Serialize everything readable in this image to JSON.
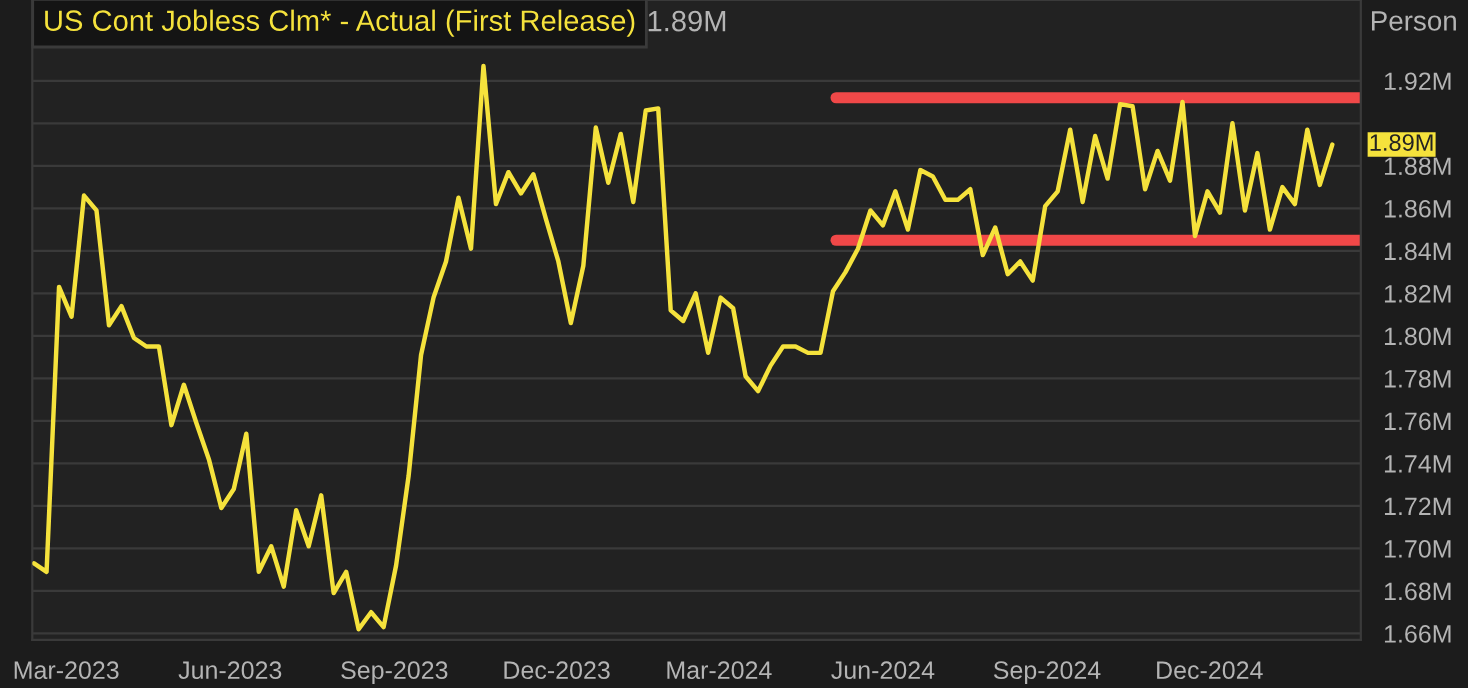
{
  "chart_data": {
    "type": "line",
    "ylabel": "Person",
    "x": [
      "2023-02-11",
      "2023-02-18",
      "2023-02-25",
      "2023-03-04",
      "2023-03-11",
      "2023-03-18",
      "2023-03-25",
      "2023-04-01",
      "2023-04-08",
      "2023-04-15",
      "2023-04-22",
      "2023-04-29",
      "2023-05-06",
      "2023-05-13",
      "2023-05-20",
      "2023-05-27",
      "2023-06-03",
      "2023-06-10",
      "2023-06-17",
      "2023-06-24",
      "2023-07-01",
      "2023-07-08",
      "2023-07-15",
      "2023-07-22",
      "2023-07-29",
      "2023-08-05",
      "2023-08-12",
      "2023-08-19",
      "2023-08-26",
      "2023-09-02",
      "2023-09-09",
      "2023-09-16",
      "2023-09-23",
      "2023-09-30",
      "2023-10-07",
      "2023-10-14",
      "2023-10-21",
      "2023-10-28",
      "2023-11-04",
      "2023-11-11",
      "2023-11-18",
      "2023-11-25",
      "2023-12-02",
      "2023-12-09",
      "2023-12-16",
      "2023-12-23",
      "2023-12-30",
      "2024-01-06",
      "2024-01-13",
      "2024-01-20",
      "2024-01-27",
      "2024-02-03",
      "2024-02-10",
      "2024-02-17",
      "2024-02-24",
      "2024-03-02",
      "2024-03-09",
      "2024-03-16",
      "2024-03-23",
      "2024-03-30",
      "2024-04-06",
      "2024-04-13",
      "2024-04-20",
      "2024-04-27",
      "2024-05-04",
      "2024-05-11",
      "2024-05-18",
      "2024-05-25",
      "2024-06-01",
      "2024-06-08",
      "2024-06-15",
      "2024-06-22",
      "2024-06-29",
      "2024-07-06",
      "2024-07-13",
      "2024-07-20",
      "2024-07-27",
      "2024-08-03",
      "2024-08-10",
      "2024-08-17",
      "2024-08-24",
      "2024-08-31",
      "2024-09-07",
      "2024-09-14",
      "2024-09-21",
      "2024-09-28",
      "2024-10-05",
      "2024-10-12",
      "2024-10-19",
      "2024-10-26",
      "2024-11-02",
      "2024-11-09",
      "2024-11-16",
      "2024-11-23",
      "2024-11-30",
      "2024-12-07",
      "2024-12-14",
      "2024-12-21",
      "2024-12-28",
      "2025-01-04",
      "2025-01-11",
      "2025-01-18",
      "2025-01-25",
      "2025-02-01",
      "2025-02-08"
    ],
    "series": [
      {
        "name": "US Cont Jobless Clm* - Actual (First Release)",
        "color": "#f5e23c",
        "values": [
          1.693,
          1.689,
          1.823,
          1.809,
          1.866,
          1.859,
          1.805,
          1.814,
          1.799,
          1.795,
          1.795,
          1.758,
          1.777,
          1.759,
          1.742,
          1.719,
          1.728,
          1.754,
          1.689,
          1.701,
          1.682,
          1.718,
          1.701,
          1.725,
          1.679,
          1.689,
          1.662,
          1.67,
          1.663,
          1.692,
          1.734,
          1.791,
          1.818,
          1.835,
          1.865,
          1.841,
          1.927,
          1.862,
          1.877,
          1.867,
          1.876,
          1.855,
          1.835,
          1.806,
          1.833,
          1.898,
          1.872,
          1.895,
          1.863,
          1.906,
          1.907,
          1.812,
          1.807,
          1.82,
          1.792,
          1.818,
          1.813,
          1.781,
          1.774,
          1.786,
          1.795,
          1.795,
          1.792,
          1.792,
          1.821,
          1.83,
          1.841,
          1.859,
          1.852,
          1.868,
          1.85,
          1.878,
          1.875,
          1.864,
          1.864,
          1.869,
          1.838,
          1.851,
          1.829,
          1.835,
          1.826,
          1.861,
          1.868,
          1.897,
          1.863,
          1.894,
          1.874,
          1.909,
          1.908,
          1.869,
          1.887,
          1.873,
          1.91,
          1.847,
          1.868,
          1.858,
          1.9,
          1.859,
          1.886,
          1.85,
          1.87,
          1.862,
          1.897,
          1.871,
          1.89
        ]
      }
    ],
    "xlim": [
      "2023-02-10",
      "2025-02-24"
    ],
    "xticks": [
      {
        "value": "2023-03-01",
        "label": "Mar-2023"
      },
      {
        "value": "2023-06-01",
        "label": "Jun-2023"
      },
      {
        "value": "2023-09-01",
        "label": "Sep-2023"
      },
      {
        "value": "2023-12-01",
        "label": "Dec-2023"
      },
      {
        "value": "2024-03-01",
        "label": "Mar-2024"
      },
      {
        "value": "2024-06-01",
        "label": "Jun-2024"
      },
      {
        "value": "2024-09-01",
        "label": "Sep-2024"
      },
      {
        "value": "2024-12-01",
        "label": "Dec-2024"
      }
    ],
    "ylim": [
      1.657,
      1.958
    ],
    "yticks": [
      {
        "value": 1.66,
        "label": "1.66M"
      },
      {
        "value": 1.68,
        "label": "1.68M"
      },
      {
        "value": 1.7,
        "label": "1.70M"
      },
      {
        "value": 1.72,
        "label": "1.72M"
      },
      {
        "value": 1.74,
        "label": "1.74M"
      },
      {
        "value": 1.76,
        "label": "1.76M"
      },
      {
        "value": 1.78,
        "label": "1.78M"
      },
      {
        "value": 1.8,
        "label": "1.80M"
      },
      {
        "value": 1.82,
        "label": "1.82M"
      },
      {
        "value": 1.84,
        "label": "1.84M"
      },
      {
        "value": 1.86,
        "label": "1.86M"
      },
      {
        "value": 1.88,
        "label": "1.88M"
      },
      {
        "value": 1.9,
        "label": null
      },
      {
        "value": 1.92,
        "label": "1.92M"
      }
    ],
    "ref_lines": [
      {
        "axis": "y",
        "value": 1.912,
        "color": "#f04848"
      },
      {
        "axis": "y",
        "value": 1.845,
        "color": "#f04848"
      }
    ],
    "annotations": [
      "1.89M",
      {
        "text": "1.89M",
        "x": "2025-02-08",
        "y": 1.89
      }
    ],
    "grid": "y",
    "legend": false,
    "marker": "none",
    "line_style": "solid"
  }
}
